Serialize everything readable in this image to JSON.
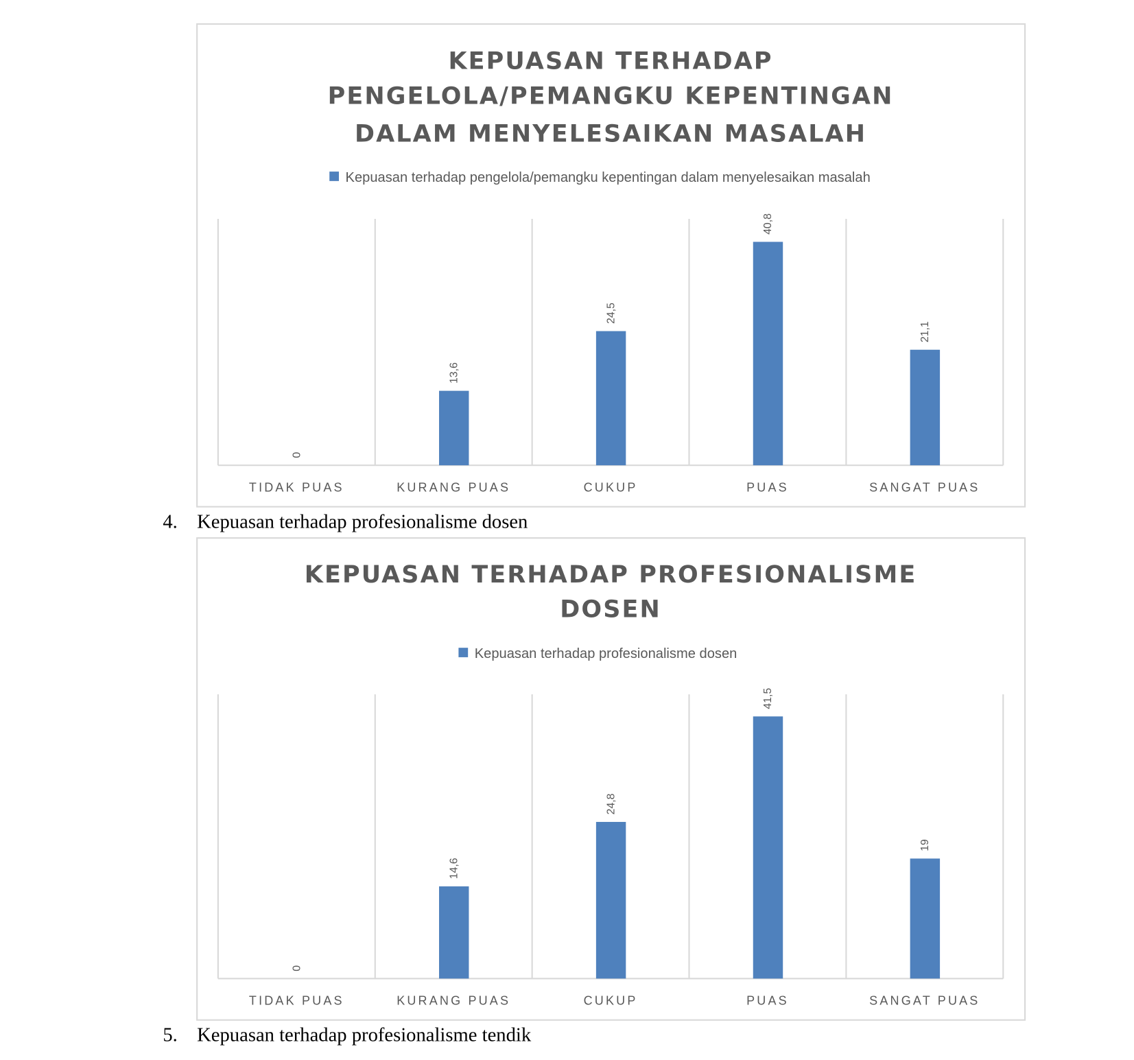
{
  "chart_data": [
    {
      "type": "bar",
      "title_lines": [
        "KEPUASAN TERHADAP",
        "PENGELOLA/PEMANGKU KEPENTINGAN",
        "DALAM MENYELESAIKAN MASALAH"
      ],
      "legend": "Kepuasan terhadap pengelola/pemangku kepentingan dalam menyelesaikan masalah",
      "categories": [
        "TIDAK PUAS",
        "KURANG PUAS",
        "CUKUP",
        "PUAS",
        "SANGAT PUAS"
      ],
      "values": [
        0,
        13.6,
        24.5,
        40.8,
        21.1
      ],
      "value_labels": [
        "0",
        "13,6",
        "24,5",
        "40,8",
        "21,1"
      ],
      "ylim": [
        0,
        45
      ],
      "color": "#4f81bd",
      "legend_position": "top"
    },
    {
      "type": "bar",
      "title_lines": [
        "KEPUASAN TERHADAP PROFESIONALISME",
        "DOSEN"
      ],
      "legend": "Kepuasan terhadap profesionalisme dosen",
      "categories": [
        "TIDAK PUAS",
        "KURANG PUAS",
        "CUKUP",
        "PUAS",
        "SANGAT PUAS"
      ],
      "values": [
        0,
        14.6,
        24.8,
        41.5,
        19
      ],
      "value_labels": [
        "0",
        "14,6",
        "24,8",
        "41,5",
        "19"
      ],
      "ylim": [
        0,
        45
      ],
      "color": "#4f81bd",
      "legend_position": "top"
    }
  ],
  "document": {
    "item4_number": "4.",
    "item4_text": "Kepuasan terhadap profesionalisme dosen",
    "item5_number": "5.",
    "item5_text": "Kepuasan terhadap profesionalisme tendik"
  }
}
